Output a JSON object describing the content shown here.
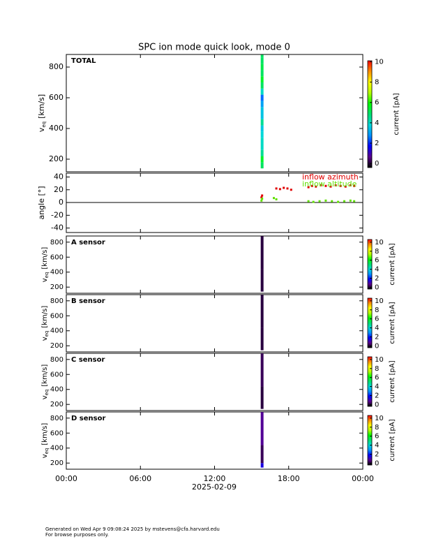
{
  "title": "SPC ion mode quick look, mode 0",
  "xaxis": {
    "xlim": [
      0,
      24
    ],
    "xticks": [
      {
        "value": 0,
        "label": "00:00"
      },
      {
        "value": 6,
        "label": "06:00"
      },
      {
        "value": 12,
        "label": "12:00"
      },
      {
        "value": 18,
        "label": "18:00"
      },
      {
        "value": 24,
        "label": "00:00"
      }
    ],
    "label": "2025-02-09"
  },
  "chart_data": [
    {
      "type": "spectrogram",
      "label": "TOTAL",
      "ylabel": {
        "main": "v",
        "sub": "eq",
        "unit": "[km/s]"
      },
      "ylim": [
        118,
        882
      ],
      "yticks": [
        200,
        400,
        600,
        800
      ],
      "times": [
        15.85
      ],
      "velocity_bins": [
        140,
        180,
        220,
        260,
        300,
        340,
        380,
        420,
        460,
        500,
        540,
        580,
        620,
        660,
        700,
        740,
        780,
        820,
        860,
        880
      ],
      "current": [
        [
          5.0,
          5.5,
          4.5,
          4.0,
          4.0,
          3.8,
          3.6,
          4.5,
          3.5,
          3.5,
          3.0,
          2.5,
          4.0,
          5.0,
          5.5,
          5.0,
          5.2,
          5.0,
          5.0
        ]
      ],
      "colorbar": {
        "label": "current [pA]",
        "lim": [
          -0.4,
          10.1
        ],
        "ticks": [
          0,
          2,
          4,
          6,
          8,
          10
        ],
        "colors": [
          "#000000",
          "#5a008c",
          "#0000ff",
          "#0090ff",
          "#00d8d8",
          "#00e070",
          "#00ff00",
          "#b4ff00",
          "#ffff00",
          "#ff9000",
          "#ff0000"
        ]
      }
    },
    {
      "type": "scatter",
      "ylabel": "angle [°]",
      "ylim": [
        -47,
        46
      ],
      "yticks": [
        -40,
        -20,
        0,
        20,
        40
      ],
      "hline": 0,
      "series": [
        {
          "name": "inflow azimuth",
          "color": "#e00000",
          "x": [
            15.8,
            15.85,
            17.0,
            17.3,
            17.6,
            17.9,
            18.2,
            19.6,
            19.9,
            20.2,
            20.6,
            21.0,
            21.4,
            21.8,
            22.2,
            22.6,
            23.0,
            23.3
          ],
          "values": [
            8,
            11,
            22,
            21,
            23,
            22,
            20,
            24,
            26,
            25,
            27,
            26,
            25,
            27,
            26,
            25,
            27,
            26
          ]
        },
        {
          "name": "inflow altitude",
          "color": "#60e000",
          "x": [
            15.8,
            15.85,
            16.8,
            17.0,
            19.6,
            20.0,
            20.5,
            21.0,
            21.5,
            22.0,
            22.5,
            23.0,
            23.3
          ],
          "values": [
            3,
            6,
            7,
            5,
            2,
            1,
            2,
            3,
            2,
            1,
            2,
            3,
            2
          ]
        }
      ]
    },
    {
      "type": "spectrogram",
      "label": "A sensor",
      "ylabel": {
        "main": "v",
        "sub": "eq",
        "unit": "[km/s]"
      },
      "ylim": [
        118,
        882
      ],
      "yticks": [
        200,
        400,
        600,
        800
      ],
      "times": [
        15.85
      ],
      "velocity_bins": [
        140,
        440,
        880
      ],
      "current": [
        [
          0.1,
          0.1
        ]
      ],
      "colorbar": {
        "label": "current [pA]",
        "lim": [
          -0.4,
          10.6
        ],
        "ticks": [
          0,
          2,
          4,
          6,
          8,
          10
        ],
        "colors": [
          "#000000",
          "#5a008c",
          "#0000ff",
          "#0090ff",
          "#00d8d8",
          "#00e070",
          "#00ff00",
          "#b4ff00",
          "#ffff00",
          "#ff9000",
          "#ff0000"
        ]
      }
    },
    {
      "type": "spectrogram",
      "label": "B sensor",
      "ylabel": {
        "main": "v",
        "sub": "eq",
        "unit": "[km/s]"
      },
      "ylim": [
        118,
        882
      ],
      "yticks": [
        200,
        400,
        600,
        800
      ],
      "times": [
        15.85
      ],
      "velocity_bins": [
        140,
        440,
        880
      ],
      "current": [
        [
          0.1,
          0.1
        ]
      ],
      "colorbar": {
        "label": "current [pA]",
        "lim": [
          -0.4,
          10.6
        ],
        "ticks": [
          0,
          2,
          4,
          6,
          8,
          10
        ],
        "colors": [
          "#000000",
          "#5a008c",
          "#0000ff",
          "#0090ff",
          "#00d8d8",
          "#00e070",
          "#00ff00",
          "#b4ff00",
          "#ffff00",
          "#ff9000",
          "#ff0000"
        ]
      }
    },
    {
      "type": "spectrogram",
      "label": "C sensor",
      "ylabel": {
        "main": "v",
        "sub": "eq",
        "unit": "[km/s]"
      },
      "ylim": [
        118,
        882
      ],
      "yticks": [
        200,
        400,
        600,
        800
      ],
      "times": [
        15.85
      ],
      "velocity_bins": [
        140,
        440,
        880
      ],
      "current": [
        [
          0.1,
          0.3
        ]
      ],
      "colorbar": {
        "label": "current [pA]",
        "lim": [
          -0.4,
          10.6
        ],
        "ticks": [
          0,
          2,
          4,
          6,
          8,
          10
        ],
        "colors": [
          "#000000",
          "#5a008c",
          "#0000ff",
          "#0090ff",
          "#00d8d8",
          "#00e070",
          "#00ff00",
          "#b4ff00",
          "#ffff00",
          "#ff9000",
          "#ff0000"
        ]
      }
    },
    {
      "type": "spectrogram",
      "label": "D sensor",
      "ylabel": {
        "main": "v",
        "sub": "eq",
        "unit": "[km/s]"
      },
      "ylim": [
        118,
        882
      ],
      "yticks": [
        200,
        400,
        600,
        800
      ],
      "times": [
        15.85
      ],
      "velocity_bins": [
        140,
        200,
        440,
        880
      ],
      "current": [
        [
          1.5,
          0.3,
          0.8
        ]
      ],
      "colorbar": {
        "label": "current [pA]",
        "lim": [
          -0.4,
          10.6
        ],
        "ticks": [
          0,
          2,
          4,
          6,
          8,
          10
        ],
        "colors": [
          "#000000",
          "#5a008c",
          "#0000ff",
          "#0090ff",
          "#00d8d8",
          "#00e070",
          "#00ff00",
          "#b4ff00",
          "#ffff00",
          "#ff9000",
          "#ff0000"
        ]
      }
    }
  ],
  "footer": [
    "Generated on Wed Apr  9 09:08:24 2025 by mstevens@cfa.harvard.edu",
    "For browse purposes only."
  ]
}
